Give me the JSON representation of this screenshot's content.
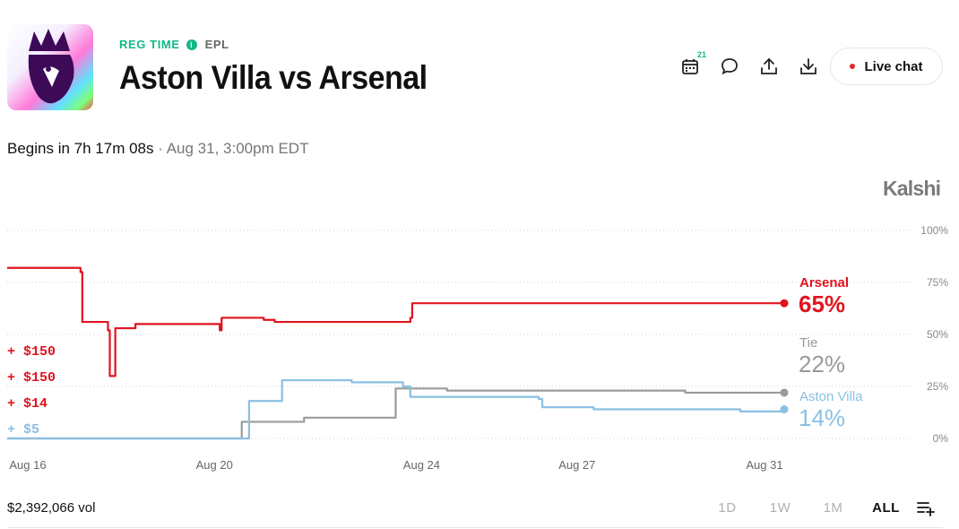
{
  "header": {
    "status": "REG TIME",
    "info_icon": "info-icon",
    "league": "EPL",
    "title": "Aston Villa vs Arsenal"
  },
  "toolbar": {
    "calendar_badge": "21",
    "live_chat_label": "Live chat"
  },
  "schedule": {
    "begins": "Begins in 7h 17m 08s",
    "separator": "·",
    "date": "Aug 31, 3:00pm EDT"
  },
  "brand": "Kalshi",
  "chart_data": {
    "type": "line",
    "x_ticks": [
      "Aug 16",
      "Aug 20",
      "Aug 24",
      "Aug 27",
      "Aug 31"
    ],
    "y_ticks": [
      "100%",
      "75%",
      "50%",
      "25%",
      "0%"
    ],
    "ylim": [
      0,
      100
    ],
    "grid": true,
    "series": [
      {
        "name": "Arsenal",
        "value_label": "65%",
        "color": "#e0141e",
        "x": [
          0,
          1.9,
          2.0,
          2.05,
          2.6,
          2.75,
          2.8,
          2.95,
          3.5,
          5.8,
          5.85,
          7.0,
          7.25,
          7.3,
          11.0,
          11.05,
          17.0,
          21.2
        ],
        "y": [
          82,
          82,
          80,
          56,
          56,
          52,
          30,
          53,
          55,
          52,
          58,
          57,
          57,
          56,
          58,
          65,
          65,
          65
        ]
      },
      {
        "name": "Tie",
        "value_label": "22%",
        "color": "#9a9a9a",
        "x": [
          0,
          6.3,
          6.4,
          8.0,
          8.1,
          10.5,
          10.6,
          12.0,
          13.0,
          16.0,
          18.5,
          21.2
        ],
        "y": [
          0,
          0,
          8,
          8,
          10,
          10,
          24,
          23,
          23,
          23,
          22,
          22
        ]
      },
      {
        "name": "Aston Villa",
        "value_label": "14%",
        "color": "#8bbfe3",
        "x": [
          0,
          6.5,
          6.6,
          7.4,
          7.5,
          9.2,
          9.4,
          10.8,
          11.0,
          12.5,
          13.0,
          14.5,
          14.6,
          16.0,
          18.0,
          20.0,
          21.2
        ],
        "y": [
          0,
          0,
          18,
          18,
          28,
          28,
          27,
          25,
          20,
          20,
          20,
          19,
          15,
          14,
          14,
          13,
          14
        ]
      }
    ],
    "trades": [
      {
        "label": "+ $150",
        "color": "#e0141e"
      },
      {
        "label": "+ $150",
        "color": "#e0141e"
      },
      {
        "label": "+ $14",
        "color": "#e0141e"
      },
      {
        "label": "+ $5",
        "color": "#8bbfe3"
      }
    ]
  },
  "footer": {
    "volume": "$2,392,066 vol",
    "ranges": [
      {
        "label": "1D",
        "active": false
      },
      {
        "label": "1W",
        "active": false
      },
      {
        "label": "1M",
        "active": false
      },
      {
        "label": "ALL",
        "active": true
      }
    ]
  }
}
